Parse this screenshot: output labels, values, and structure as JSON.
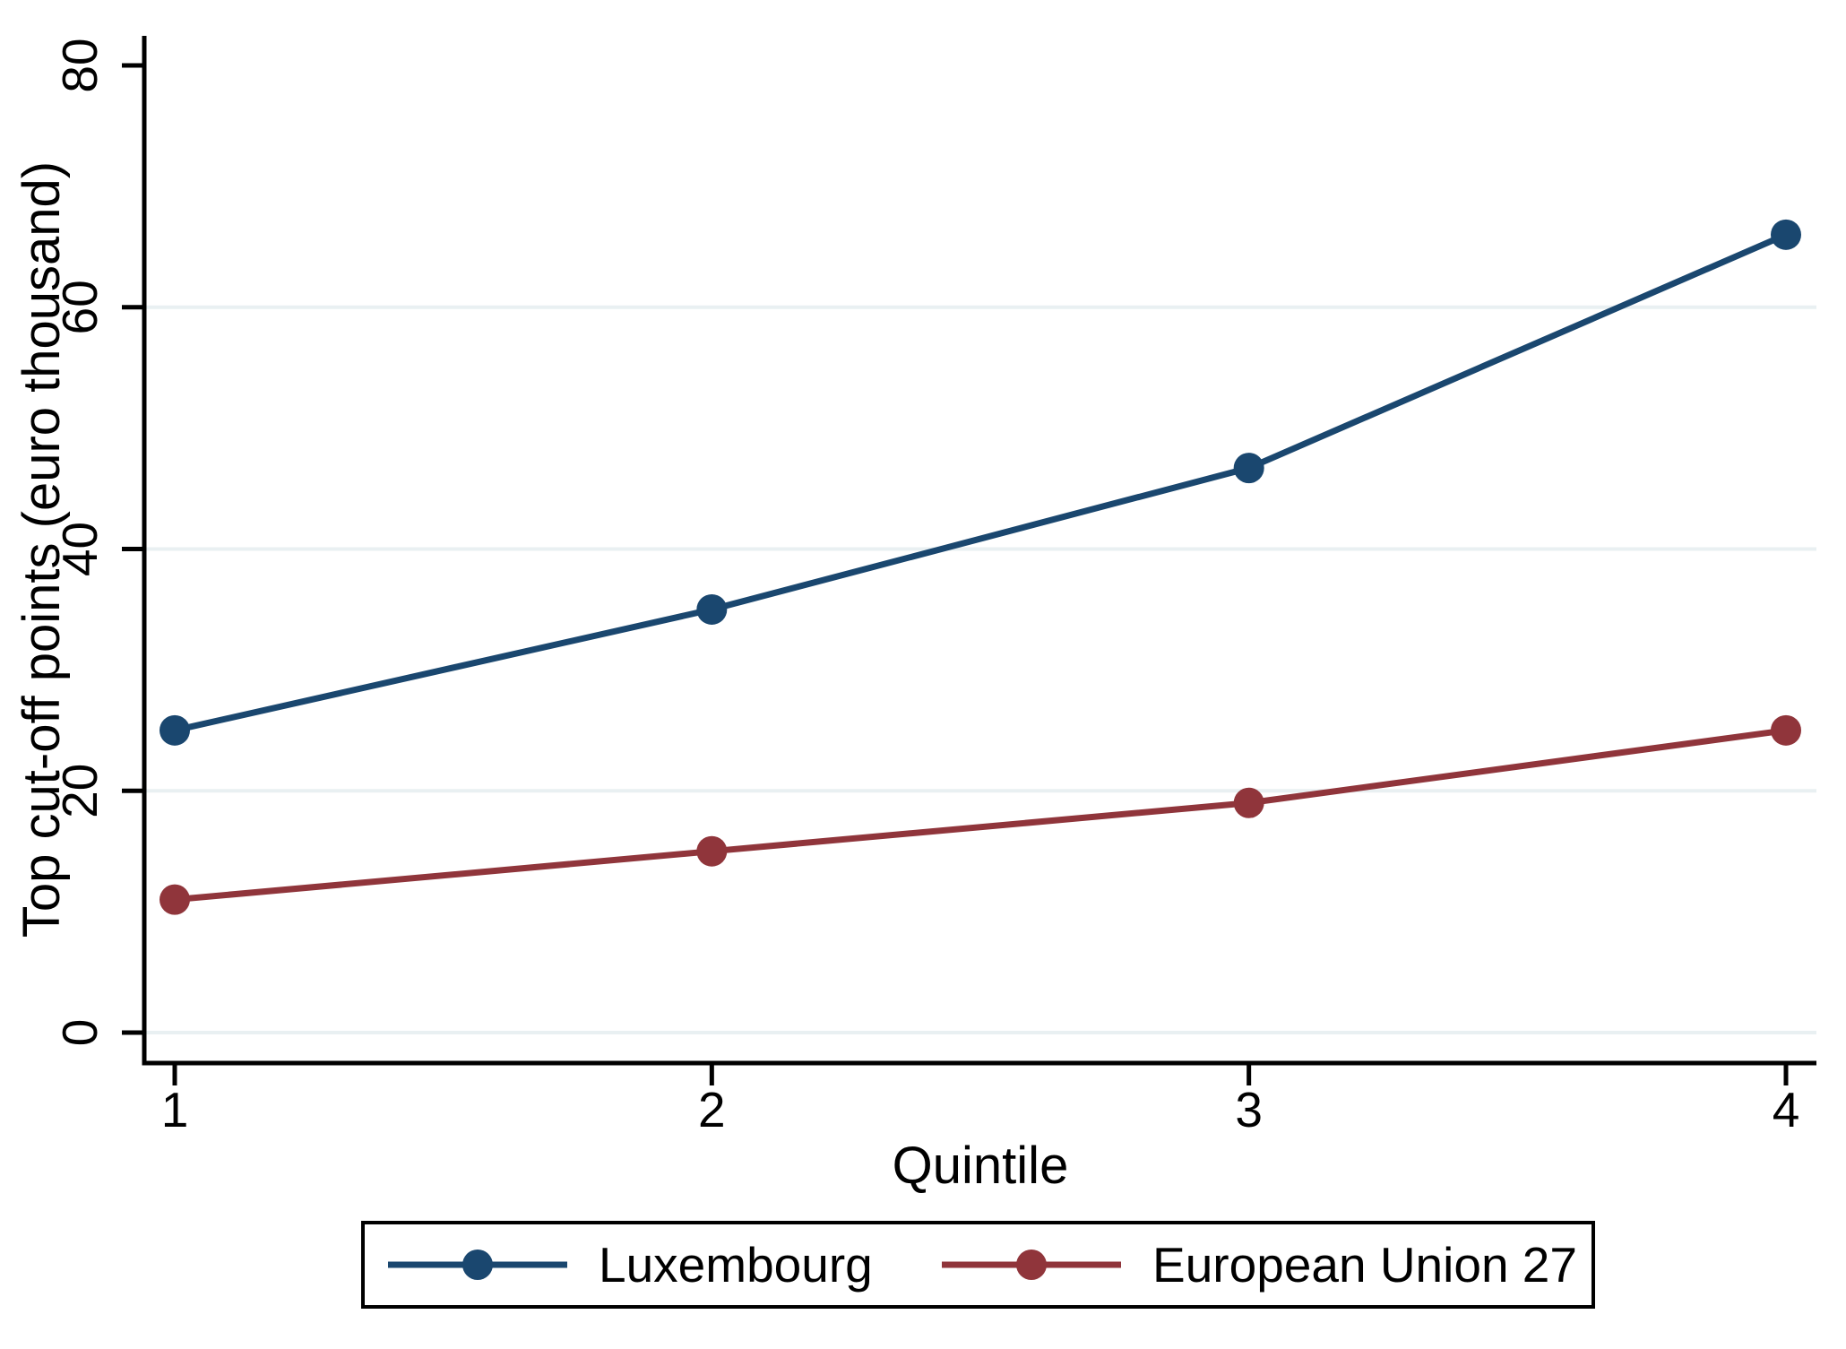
{
  "chart_data": {
    "type": "line",
    "title": "",
    "xlabel": "Quintile",
    "ylabel": "Top cut-off points (euro thousand)",
    "x": [
      1,
      2,
      3,
      4
    ],
    "xtick_labels": [
      "1",
      "2",
      "3",
      "4"
    ],
    "yticks": [
      0,
      20,
      40,
      60,
      80
    ],
    "ytick_labels": [
      "0",
      "20",
      "40",
      "60",
      "80"
    ],
    "ylim": [
      0,
      80
    ],
    "grid": "horizontal gridlines at 0, 20, 40, 60",
    "gridline_values": [
      0,
      20,
      40,
      60
    ],
    "legend_position": "bottom",
    "series": [
      {
        "name": "Luxembourg",
        "color": "#1a476f",
        "values": [
          25,
          35,
          46.7,
          66
        ]
      },
      {
        "name": "European Union 27",
        "color": "#90353b",
        "values": [
          11,
          15,
          19,
          25
        ]
      }
    ],
    "colors": {
      "gridline": "#e9f0f2",
      "axis": "#000000",
      "background": "#ffffff"
    },
    "marker": "filled-circle",
    "ytick_label_rotation_deg": -90
  }
}
